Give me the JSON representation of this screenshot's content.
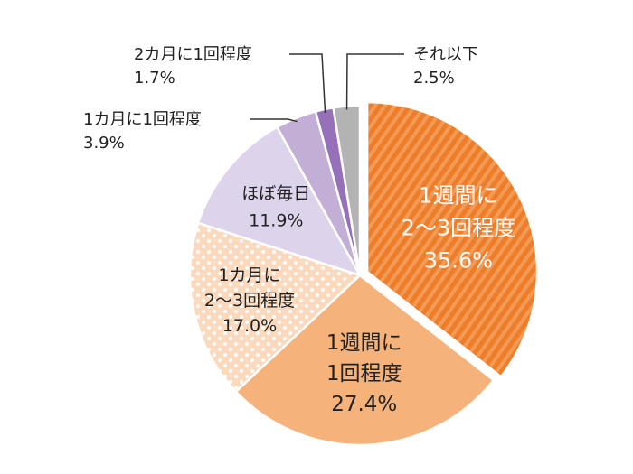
{
  "chart_data": {
    "type": "pie",
    "slices": [
      {
        "label": [
          "1週間に",
          "2〜3回程度"
        ],
        "value": 35.6,
        "value_text": "35.6%",
        "color": "#ee7d2a",
        "pattern": "stripes",
        "exploded": true,
        "label_placement": "inside",
        "text_color": "#ffffff"
      },
      {
        "label": [
          "1週間に",
          "1回程度"
        ],
        "value": 27.4,
        "value_text": "27.4%",
        "color": "#f5b27b",
        "pattern": "none",
        "exploded": false,
        "label_placement": "inside",
        "text_color": "#222222"
      },
      {
        "label": [
          "1カ月に",
          "2〜3回程度"
        ],
        "value": 17.0,
        "value_text": "17.0%",
        "color": "#fbd9bd",
        "pattern": "dots",
        "exploded": false,
        "label_placement": "inside",
        "text_color": "#222222"
      },
      {
        "label": [
          "ほぼ毎日"
        ],
        "value": 11.9,
        "value_text": "11.9%",
        "color": "#ddd3eb",
        "pattern": "none",
        "exploded": false,
        "label_placement": "inside",
        "text_color": "#222222"
      },
      {
        "label": [
          "1カ月に1回程度"
        ],
        "value": 3.9,
        "value_text": "3.9%",
        "color": "#c3aed6",
        "pattern": "none",
        "exploded": false,
        "label_placement": "outside",
        "text_color": "#222222"
      },
      {
        "label": [
          "2カ月に1回程度"
        ],
        "value": 1.7,
        "value_text": "1.7%",
        "color": "#9670b8",
        "pattern": "none",
        "exploded": false,
        "label_placement": "outside",
        "text_color": "#222222"
      },
      {
        "label": [
          "それ以下"
        ],
        "value": 2.5,
        "value_text": "2.5%",
        "color": "#b3b3b3",
        "pattern": "none",
        "exploded": false,
        "label_placement": "outside",
        "text_color": "#222222"
      }
    ],
    "start": "12 o'clock",
    "direction": "clockwise",
    "title": "",
    "legend": "none"
  }
}
